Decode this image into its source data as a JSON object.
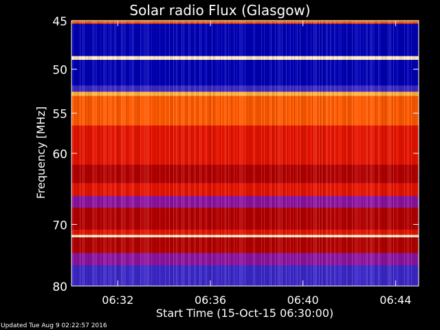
{
  "chart_data": {
    "type": "heatmap",
    "title": "Solar radio Flux (Glasgow)",
    "xlabel": "Start Time (15-Oct-15 06:30:00)",
    "ylabel": "Frequency [MHz]",
    "x_ticks": [
      "06:32",
      "06:36",
      "06:40",
      "06:44"
    ],
    "x_tick_minutes": [
      2,
      6,
      10,
      14
    ],
    "xlim_minutes": [
      0,
      15
    ],
    "y_ticks": [
      45,
      50,
      55,
      60,
      70,
      80
    ],
    "ylim_mhz": [
      45,
      80
    ],
    "y_scale": "log",
    "colormap": [
      "#0000b4",
      "#3c28c8",
      "#8c14a0",
      "#b40000",
      "#e61400",
      "#ff5a00",
      "#ffb43c",
      "#ffeec8"
    ],
    "bands": [
      {
        "from": 45,
        "to": 45.3,
        "level": 5
      },
      {
        "from": 45.3,
        "to": 48.6,
        "level": 0
      },
      {
        "from": 48.6,
        "to": 49.0,
        "level": 7
      },
      {
        "from": 49.0,
        "to": 51.8,
        "level": 0
      },
      {
        "from": 51.8,
        "to": 52.5,
        "level": 1
      },
      {
        "from": 52.5,
        "to": 53.0,
        "level": 6
      },
      {
        "from": 53.0,
        "to": 56.5,
        "level": 5
      },
      {
        "from": 56.5,
        "to": 61.5,
        "level": 4
      },
      {
        "from": 61.5,
        "to": 64.0,
        "level": 3
      },
      {
        "from": 64.0,
        "to": 65.8,
        "level": 4
      },
      {
        "from": 65.8,
        "to": 67.5,
        "level": 2
      },
      {
        "from": 67.5,
        "to": 70.8,
        "level": 3
      },
      {
        "from": 70.8,
        "to": 71.6,
        "level": 4
      },
      {
        "from": 71.6,
        "to": 72.0,
        "level": 7
      },
      {
        "from": 72.0,
        "to": 74.5,
        "level": 3
      },
      {
        "from": 74.5,
        "to": 76.5,
        "level": 2
      },
      {
        "from": 76.5,
        "to": 80,
        "level": 1
      }
    ],
    "footer": "Updated Tue Aug  9 02:22:57 2016"
  }
}
